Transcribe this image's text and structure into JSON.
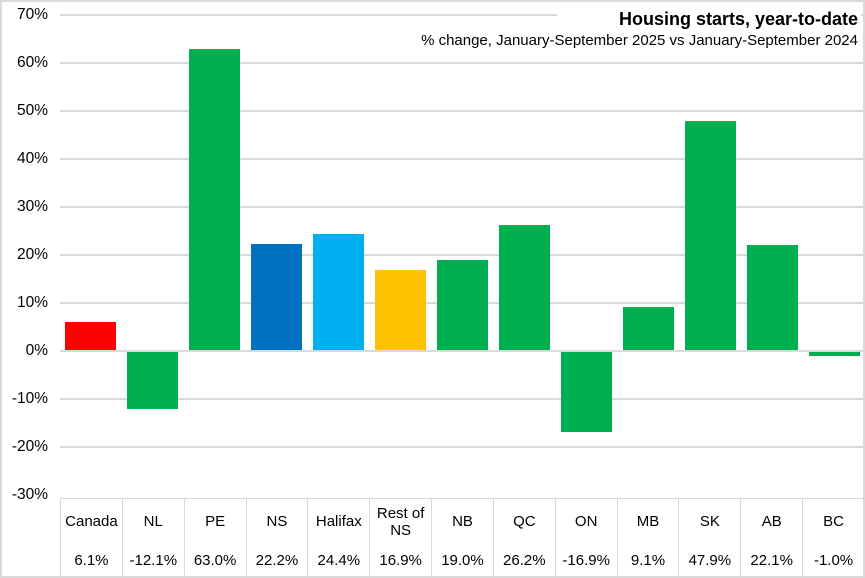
{
  "chart": {
    "title": "Housing starts, year-to-date",
    "subtitle": "% change, January-September 2025 vs January-September 2024"
  },
  "chart_data": {
    "type": "bar",
    "title": "Housing starts, year-to-date",
    "subtitle": "% change, January-September 2025 vs January-September 2024",
    "categories": [
      "Canada",
      "NL",
      "PE",
      "NS",
      "Halifax",
      "Rest of NS",
      "NB",
      "QC",
      "ON",
      "MB",
      "SK",
      "AB",
      "BC"
    ],
    "values": [
      6.1,
      -12.1,
      63.0,
      22.2,
      24.4,
      16.9,
      19.0,
      26.2,
      -16.9,
      9.1,
      47.9,
      22.1,
      -1.0
    ],
    "value_labels": [
      "6.1%",
      "-12.1%",
      "63.0%",
      "22.2%",
      "24.4%",
      "16.9%",
      "19.0%",
      "26.2%",
      "-16.9%",
      "9.1%",
      "47.9%",
      "22.1%",
      "-1.0%"
    ],
    "bar_colors": [
      "#FF0000",
      "#00B050",
      "#00B050",
      "#0070C0",
      "#00B0F0",
      "#FFC000",
      "#00B050",
      "#00B050",
      "#00B050",
      "#00B050",
      "#00B050",
      "#00B050",
      "#00B050"
    ],
    "color_legend": {
      "canada": "#FF0000",
      "default_province": "#00B050",
      "ns": "#0070C0",
      "halifax": "#00B0F0",
      "rest_of_ns": "#FFC000"
    },
    "ylim": [
      -30,
      70
    ],
    "ytick_interval": 10,
    "ytick_labels": [
      "70%",
      "60%",
      "50%",
      "40%",
      "30%",
      "20%",
      "10%",
      "0%",
      "-10%",
      "-20%",
      "-30%"
    ],
    "grid": true,
    "gridline_color": "#D9D9D9",
    "legend_position": "none",
    "data_table_shown": true
  }
}
